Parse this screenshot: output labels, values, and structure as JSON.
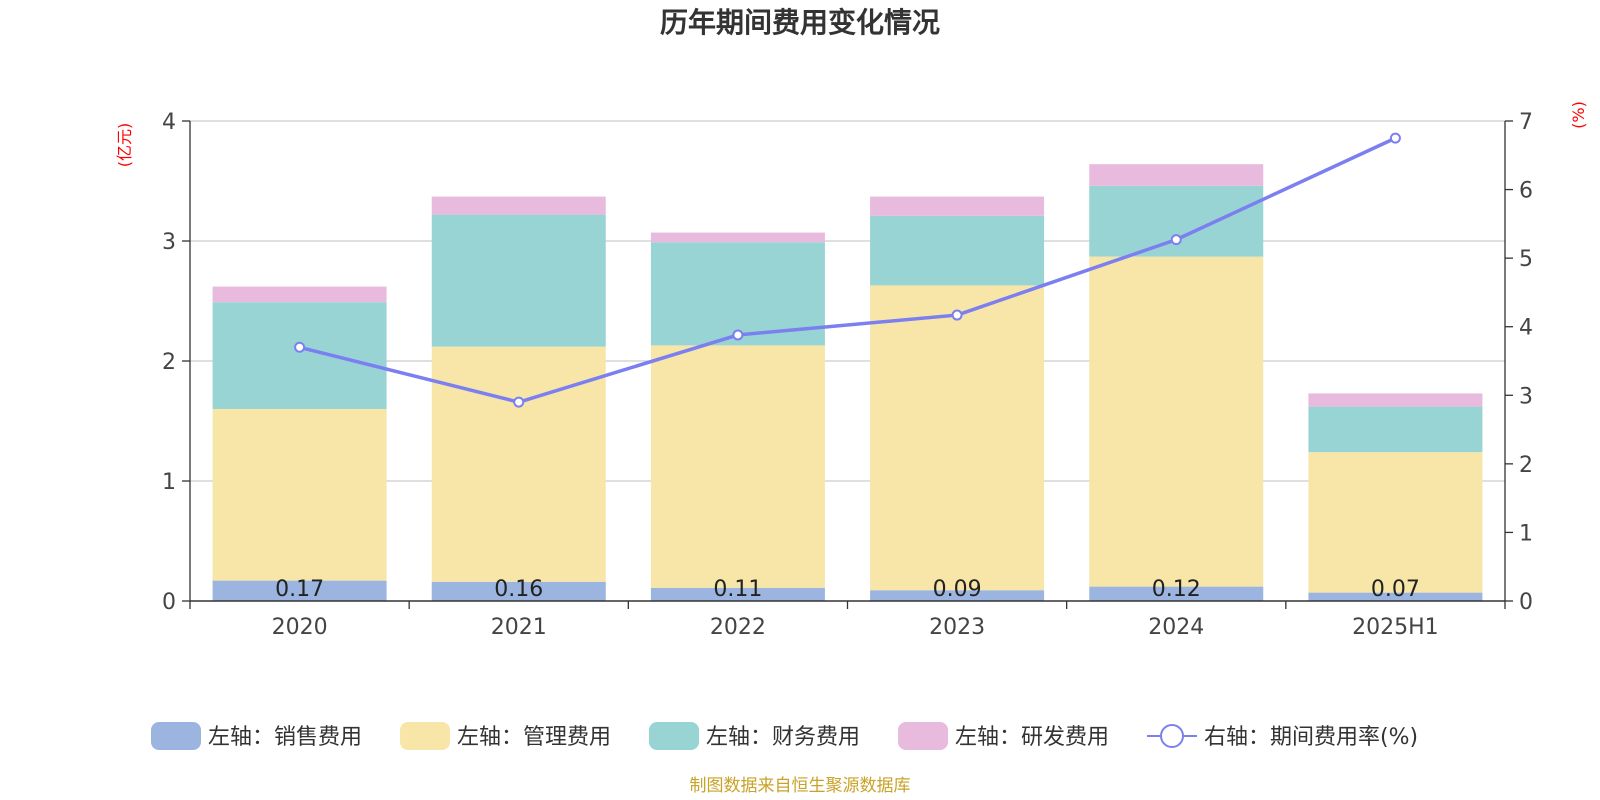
{
  "title": "历年期间费用变化情况",
  "source_note": "制图数据来自恒生聚源数据库",
  "chart_data": {
    "type": "bar",
    "stacked": true,
    "title": "历年期间费用变化情况",
    "categories": [
      "2020",
      "2021",
      "2022",
      "2023",
      "2024",
      "2025H1"
    ],
    "left_axis": {
      "unit_label": "(亿元)",
      "ylim": [
        0,
        4
      ],
      "ticks": [
        "0",
        "1",
        "2",
        "3",
        "4"
      ]
    },
    "right_axis": {
      "unit_label": "(%)",
      "ylim": [
        0,
        7
      ],
      "ticks": [
        "0",
        "1",
        "2",
        "3",
        "4",
        "5",
        "6",
        "7"
      ]
    },
    "grid": true,
    "legend_position": "bottom",
    "series": [
      {
        "name": "左轴：销售费用",
        "axis": "left",
        "kind": "bar",
        "color": "#9bb5e0",
        "values": [
          0.17,
          0.16,
          0.11,
          0.09,
          0.12,
          0.07
        ],
        "data_labels": [
          "0.17",
          "0.16",
          "0.11",
          "0.09",
          "0.12",
          "0.07"
        ]
      },
      {
        "name": "左轴：管理费用",
        "axis": "left",
        "kind": "bar",
        "color": "#f7e6a8",
        "values": [
          1.43,
          1.96,
          2.02,
          2.54,
          2.75,
          1.17
        ]
      },
      {
        "name": "左轴：财务费用",
        "axis": "left",
        "kind": "bar",
        "color": "#98d4d4",
        "values": [
          0.89,
          1.1,
          0.86,
          0.58,
          0.59,
          0.38
        ]
      },
      {
        "name": "左轴：研发费用",
        "axis": "left",
        "kind": "bar",
        "color": "#e8bade",
        "values": [
          0.13,
          0.15,
          0.08,
          0.16,
          0.18,
          0.11
        ]
      },
      {
        "name": "右轴：期间费用率(%)",
        "axis": "right",
        "kind": "line",
        "color": "#7b7ff0",
        "values": [
          3.7,
          2.9,
          3.88,
          4.17,
          5.27,
          6.75
        ]
      }
    ]
  }
}
